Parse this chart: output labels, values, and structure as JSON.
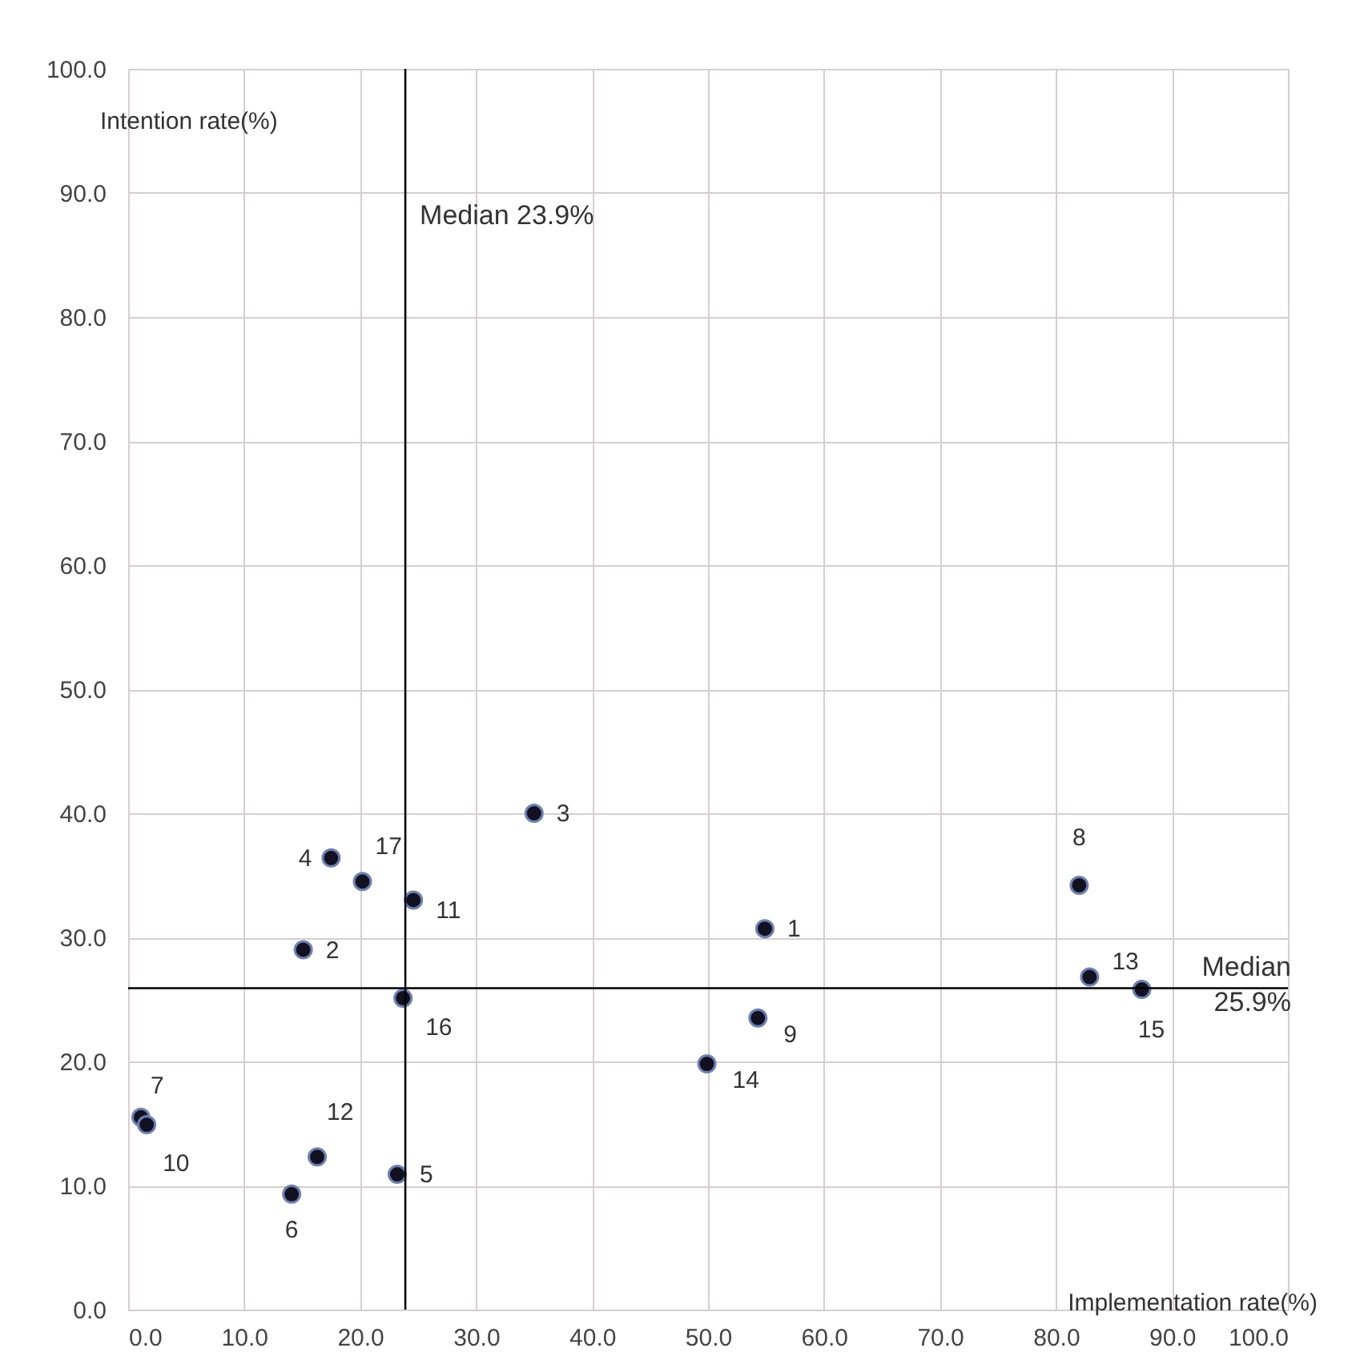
{
  "chart_data": {
    "type": "scatter",
    "xlabel": "Implementation rate(%)",
    "ylabel": "Intention rate(%)",
    "x": [
      54.9,
      15.1,
      35.0,
      17.5,
      23.2,
      14.1,
      1.1,
      82.0,
      54.3,
      1.6,
      24.6,
      16.3,
      82.9,
      49.9,
      87.4,
      23.7,
      20.2
    ],
    "series": [
      {
        "color": "#111122",
        "values": [
          30.7,
          29.0,
          40.0,
          36.4,
          10.9,
          9.3,
          15.5,
          34.2,
          23.5,
          14.9,
          33.0,
          12.3,
          26.8,
          19.8,
          25.8,
          25.1,
          34.5
        ]
      }
    ],
    "marker": "circle",
    "grid": true,
    "xlim": [
      0,
      100
    ],
    "ylim": [
      0,
      100
    ],
    "xticks": [
      {
        "value": 0,
        "label": "0.0"
      },
      {
        "value": 10,
        "label": "10.0"
      },
      {
        "value": 20,
        "label": "20.0"
      },
      {
        "value": 30,
        "label": "30.0"
      },
      {
        "value": 40,
        "label": "40.0"
      },
      {
        "value": 50,
        "label": "50.0"
      },
      {
        "value": 60,
        "label": "60.0"
      },
      {
        "value": 70,
        "label": "70.0"
      },
      {
        "value": 80,
        "label": "80.0"
      },
      {
        "value": 90,
        "label": "90.0"
      },
      {
        "value": 100,
        "label": "100.0"
      }
    ],
    "yticks": [
      {
        "value": 0,
        "label": "0.0"
      },
      {
        "value": 10,
        "label": "10.0"
      },
      {
        "value": 20,
        "label": "20.0"
      },
      {
        "value": 30,
        "label": "30.0"
      },
      {
        "value": 40,
        "label": "40.0"
      },
      {
        "value": 50,
        "label": "50.0"
      },
      {
        "value": 60,
        "label": "60.0"
      },
      {
        "value": 70,
        "label": "70.0"
      },
      {
        "value": 80,
        "label": "80.0"
      },
      {
        "value": 90,
        "label": "90.0"
      },
      {
        "value": 100,
        "label": "100.0"
      }
    ],
    "ref_lines": [
      {
        "axis": "x",
        "value": 23.9,
        "label": "Median 23.9%",
        "color": "#000000"
      },
      {
        "axis": "y",
        "value": 25.9,
        "label": "Median 25.9%",
        "color": "#000000"
      }
    ],
    "annotations": [
      {
        "text": "1",
        "x": 54.9,
        "y": 30.7
      },
      {
        "text": "2",
        "x": 15.1,
        "y": 29.0
      },
      {
        "text": "3",
        "x": 35.0,
        "y": 40.0
      },
      {
        "text": "4",
        "x": 17.5,
        "y": 36.4
      },
      {
        "text": "5",
        "x": 23.2,
        "y": 10.9
      },
      {
        "text": "6",
        "x": 14.1,
        "y": 9.3
      },
      {
        "text": "7",
        "x": 1.1,
        "y": 15.5
      },
      {
        "text": "8",
        "x": 82.0,
        "y": 34.2
      },
      {
        "text": "9",
        "x": 54.3,
        "y": 23.5
      },
      {
        "text": "10",
        "x": 1.6,
        "y": 14.9
      },
      {
        "text": "11",
        "x": 24.6,
        "y": 33.0
      },
      {
        "text": "12",
        "x": 16.3,
        "y": 12.3
      },
      {
        "text": "13",
        "x": 82.9,
        "y": 26.8
      },
      {
        "text": "14",
        "x": 49.9,
        "y": 19.8
      },
      {
        "text": "15",
        "x": 87.4,
        "y": 25.8
      },
      {
        "text": "16",
        "x": 23.7,
        "y": 25.1
      },
      {
        "text": "17",
        "x": 20.2,
        "y": 34.5
      }
    ]
  }
}
